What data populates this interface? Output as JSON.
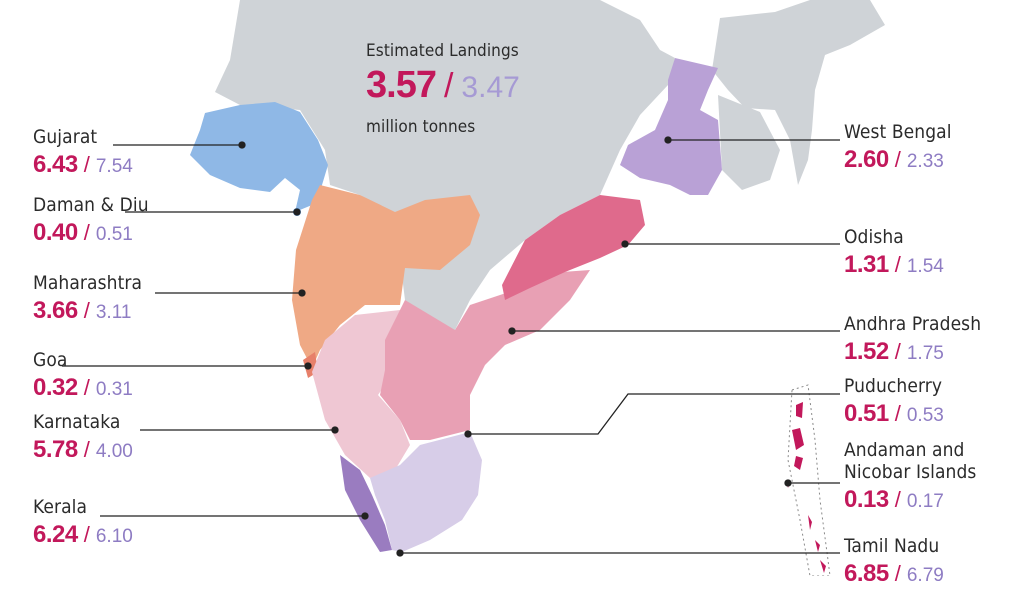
{
  "total": {
    "title": "Estimated Landings",
    "value_current": "3.57",
    "separator": "/",
    "value_previous": "3.47",
    "unit": "million tonnes"
  },
  "colors": {
    "land_gray": "#cfd3d7",
    "value_current": "#c2185b",
    "value_previous": "#8e7cc3",
    "leader_line": "#222222"
  },
  "states": [
    {
      "id": "gujarat",
      "name": "Gujarat",
      "current": "6.43",
      "previous": "7.54",
      "color": "#8fb8e6"
    },
    {
      "id": "daman-diu",
      "name": "Daman & Diu",
      "current": "0.40",
      "previous": "0.51",
      "color": "#6fa3df"
    },
    {
      "id": "maharashtra",
      "name": "Maharashtra",
      "current": "3.66",
      "previous": "3.11",
      "color": "#efa985"
    },
    {
      "id": "goa",
      "name": "Goa",
      "current": "0.32",
      "previous": "0.31",
      "color": "#e7806a"
    },
    {
      "id": "karnataka",
      "name": "Karnataka",
      "current": "5.78",
      "previous": "4.00",
      "color": "#efc7d3"
    },
    {
      "id": "kerala",
      "name": "Kerala",
      "current": "6.24",
      "previous": "6.10",
      "color": "#9a7cc0"
    },
    {
      "id": "west-bengal",
      "name": "West Bengal",
      "current": "2.60",
      "previous": "2.33",
      "color": "#b9a1d6"
    },
    {
      "id": "odisha",
      "name": "Odisha",
      "current": "1.31",
      "previous": "1.54",
      "color": "#df6a8c"
    },
    {
      "id": "andhra-pradesh",
      "name": "Andhra Pradesh",
      "current": "1.52",
      "previous": "1.75",
      "color": "#e8a0b4"
    },
    {
      "id": "puducherry",
      "name": "Puducherry",
      "current": "0.51",
      "previous": "0.53",
      "color": "#c2185b"
    },
    {
      "id": "andaman-nicobar",
      "name": "Andaman and\nNicobar Islands",
      "current": "0.13",
      "previous": "0.17",
      "color": "#c2185b"
    },
    {
      "id": "tamil-nadu",
      "name": "Tamil Nadu",
      "current": "6.85",
      "previous": "6.79",
      "color": "#d7cde8"
    }
  ]
}
